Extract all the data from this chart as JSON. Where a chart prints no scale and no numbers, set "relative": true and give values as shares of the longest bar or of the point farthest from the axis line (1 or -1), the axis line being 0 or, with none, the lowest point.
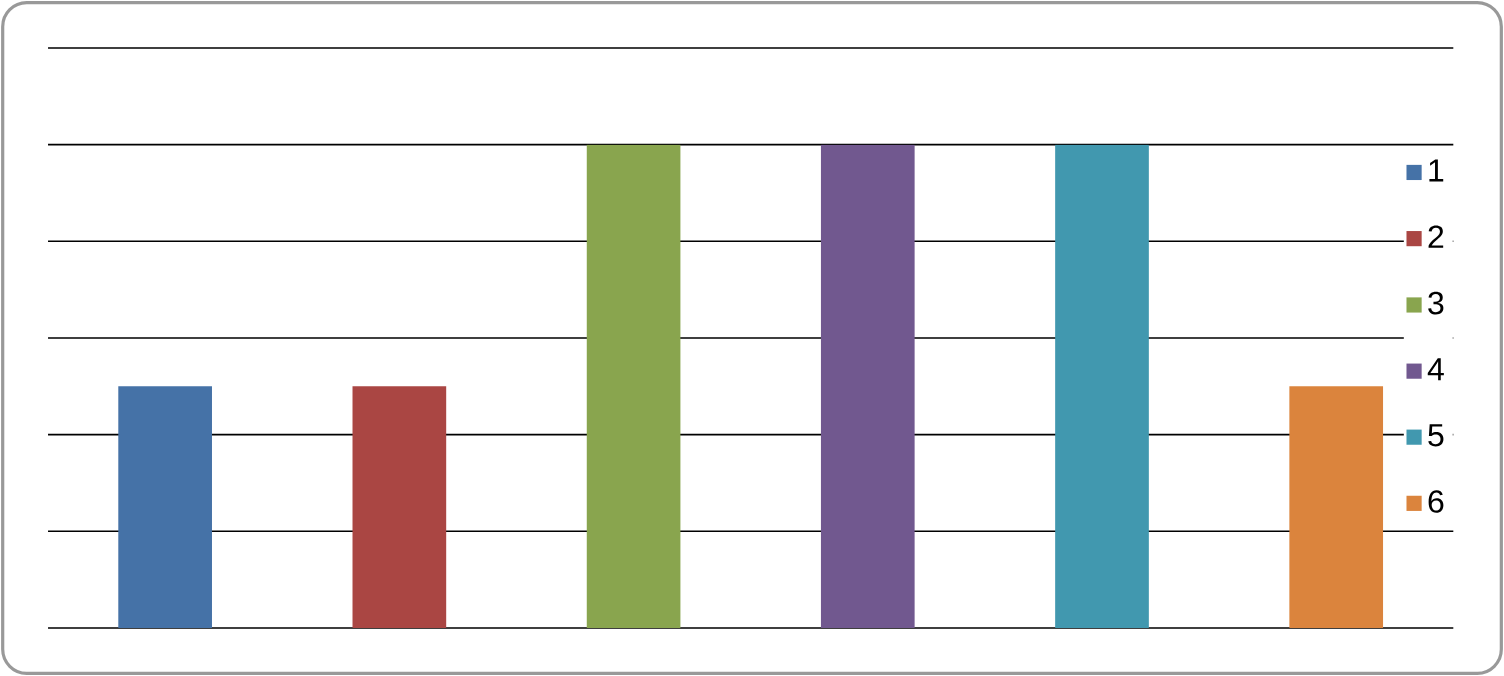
{
  "chart_data": {
    "type": "bar",
    "relative": true,
    "stacked": true,
    "categories": [
      null,
      null,
      null,
      null,
      null,
      null
    ],
    "series": [
      {
        "name": "1",
        "color": "#4572a7",
        "values": [
          0.5,
          null,
          null,
          null,
          null,
          null
        ]
      },
      {
        "name": "2",
        "color": "#aa4643",
        "values": [
          null,
          0.5,
          null,
          null,
          null,
          null
        ]
      },
      {
        "name": "3",
        "color": "#89a54e",
        "values": [
          null,
          null,
          1,
          null,
          null,
          null
        ]
      },
      {
        "name": "4",
        "color": "#71588f",
        "values": [
          null,
          null,
          null,
          1,
          null,
          null
        ]
      },
      {
        "name": "5",
        "color": "#4198af",
        "values": [
          null,
          null,
          null,
          null,
          1,
          null
        ]
      },
      {
        "name": "6",
        "color": "#db843d",
        "values": [
          null,
          null,
          null,
          null,
          null,
          0.5
        ]
      }
    ],
    "grid": "y",
    "legend": "right"
  }
}
